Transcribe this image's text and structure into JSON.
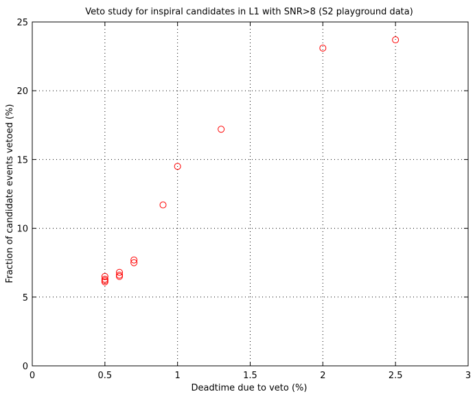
{
  "chart_data": {
    "type": "scatter",
    "title": "Veto study for inspiral candidates in L1 with SNR>8 (S2 playground data)",
    "xlabel": "Deadtime due to veto (%)",
    "ylabel": "Fraction of candidate events vetoed (%)",
    "xlim": [
      0,
      3
    ],
    "ylim": [
      0,
      25
    ],
    "xticks": [
      0,
      0.5,
      1,
      1.5,
      2,
      2.5,
      3
    ],
    "xtick_labels": [
      "0",
      "0.5",
      "1",
      "1.5",
      "2",
      "2.5",
      "3"
    ],
    "yticks": [
      0,
      5,
      10,
      15,
      20,
      25
    ],
    "ytick_labels": [
      "0",
      "5",
      "10",
      "15",
      "20",
      "25"
    ],
    "grid": true,
    "marker": "circle",
    "marker_color": "#ff0000",
    "series": [
      {
        "x": [
          0.5,
          0.5,
          0.5,
          0.5,
          0.6,
          0.6,
          0.6,
          0.7,
          0.7,
          0.9,
          1.0,
          1.3,
          2.0,
          2.5
        ],
        "y": [
          6.1,
          6.2,
          6.3,
          6.5,
          6.5,
          6.6,
          6.8,
          7.5,
          7.7,
          11.7,
          14.5,
          17.2,
          23.1,
          23.7
        ]
      }
    ]
  }
}
